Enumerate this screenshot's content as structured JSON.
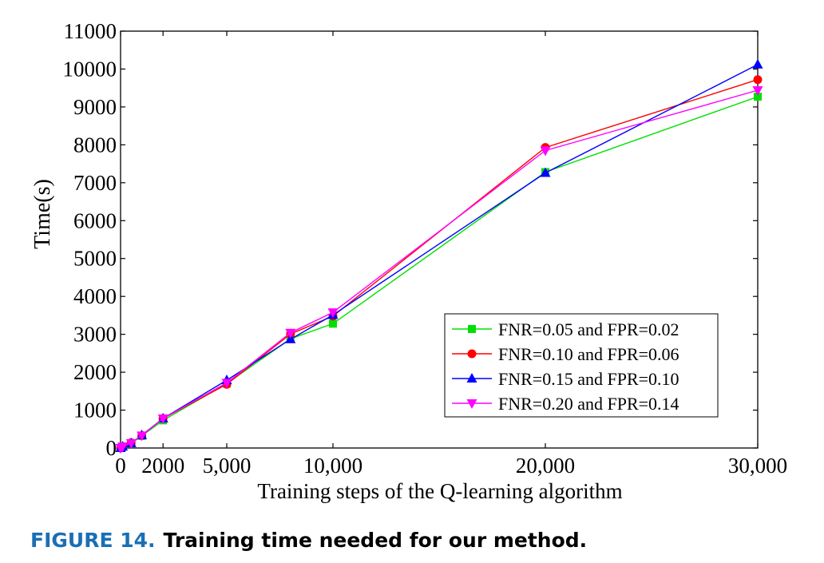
{
  "chart_data": {
    "type": "line",
    "title": "",
    "xlabel": "Training steps of the Q-learning algorithm",
    "ylabel": "Time(s)",
    "xlim": [
      0,
      30000
    ],
    "ylim": [
      0,
      11000
    ],
    "grid": false,
    "legend_position": "bottom-right",
    "x_ticks": [
      {
        "value": 0,
        "label": "0"
      },
      {
        "value": 2000,
        "label": "2000"
      },
      {
        "value": 5000,
        "label": "5,000"
      },
      {
        "value": 10000,
        "label": "10,000"
      },
      {
        "value": 20000,
        "label": "20,000"
      },
      {
        "value": 30000,
        "label": "30,000"
      }
    ],
    "y_ticks": [
      {
        "value": 0,
        "label": "0"
      },
      {
        "value": 1000,
        "label": "1000"
      },
      {
        "value": 2000,
        "label": "2000"
      },
      {
        "value": 3000,
        "label": "3000"
      },
      {
        "value": 4000,
        "label": "4000"
      },
      {
        "value": 5000,
        "label": "5000"
      },
      {
        "value": 6000,
        "label": "6000"
      },
      {
        "value": 7000,
        "label": "7000"
      },
      {
        "value": 8000,
        "label": "8000"
      },
      {
        "value": 9000,
        "label": "9000"
      },
      {
        "value": 10000,
        "label": "10000"
      },
      {
        "value": 11000,
        "label": "11000"
      }
    ],
    "x": [
      0,
      100,
      500,
      1000,
      2000,
      5000,
      8000,
      10000,
      20000,
      30000
    ],
    "series": [
      {
        "name": "FNR=0.05 and FPR=0.02",
        "color": "#00e000",
        "marker": "square",
        "values": [
          0,
          30,
          120,
          320,
          730,
          1700,
          2880,
          3280,
          7280,
          9270
        ]
      },
      {
        "name": "FNR=0.10 and FPR=0.06",
        "color": "#ff0000",
        "marker": "circle",
        "values": [
          0,
          40,
          140,
          330,
          780,
          1680,
          3010,
          3480,
          7930,
          9720
        ]
      },
      {
        "name": "FNR=0.15 and FPR=0.10",
        "color": "#0000ff",
        "marker": "triangle-up",
        "values": [
          0,
          40,
          130,
          340,
          780,
          1790,
          2870,
          3510,
          7260,
          10120
        ]
      },
      {
        "name": "FNR=0.20 and FPR=0.14",
        "color": "#ff00ff",
        "marker": "triangle-down",
        "values": [
          0,
          40,
          130,
          330,
          780,
          1720,
          3040,
          3580,
          7850,
          9440
        ]
      }
    ]
  },
  "caption": {
    "label": "FIGURE 14.",
    "text": "Training time needed for our method."
  }
}
